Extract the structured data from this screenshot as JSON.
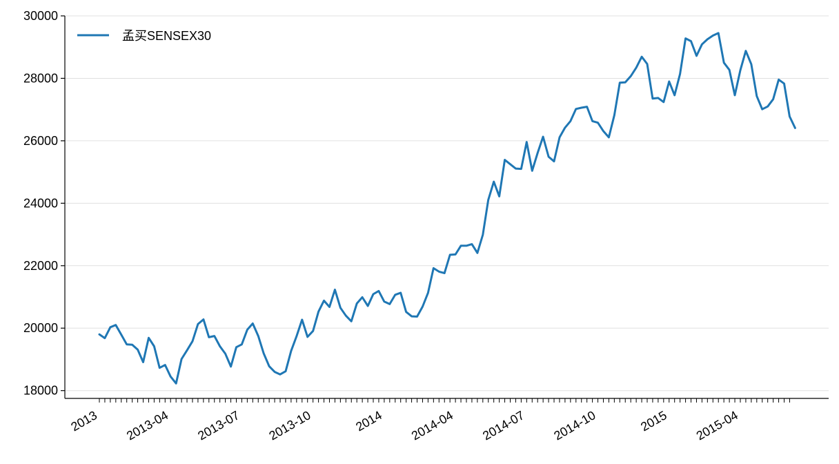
{
  "chart_data": {
    "type": "line",
    "title": "",
    "xlabel": "",
    "ylabel": "",
    "ylim": [
      17750,
      30000
    ],
    "y_ticks": [
      18000,
      20000,
      22000,
      24000,
      26000,
      28000,
      30000
    ],
    "y_tick_labels": [
      "18000",
      "20000",
      "22000",
      "24000",
      "26000",
      "28000",
      "30000"
    ],
    "x_tick_labels": [
      "2013",
      "2013-04",
      "2013-07",
      "2013-10",
      "2014",
      "2014-04",
      "2014-07",
      "2014-10",
      "2015",
      "2015-04"
    ],
    "x_tick_label_positions": [
      0,
      13,
      26,
      39,
      52,
      65,
      78,
      91,
      104,
      117
    ],
    "weekly_minor_ticks": 127,
    "grid": "horizontal",
    "legend_position": "top-left",
    "colors": {
      "line": "#1f77b4",
      "grid": "#e0e0e0",
      "axis": "#000000"
    },
    "series": [
      {
        "name": "孟买SENSEX30",
        "values": [
          19800,
          19680,
          20030,
          20100,
          19790,
          19480,
          19470,
          19310,
          18910,
          19690,
          19420,
          18730,
          18820,
          18450,
          18230,
          19010,
          19290,
          19580,
          20130,
          20280,
          19710,
          19750,
          19420,
          19180,
          18770,
          19390,
          19480,
          19950,
          20150,
          19750,
          19190,
          18780,
          18600,
          18520,
          18620,
          19270,
          19740,
          20270,
          19720,
          19910,
          20530,
          20880,
          20680,
          21230,
          20650,
          20400,
          20220,
          20790,
          20990,
          20710,
          21090,
          21190,
          20850,
          20770,
          21070,
          21130,
          20520,
          20380,
          20370,
          20690,
          21130,
          21920,
          21810,
          21760,
          22350,
          22360,
          22640,
          22640,
          22690,
          22410,
          22990,
          24110,
          24690,
          24220,
          25390,
          25250,
          25110,
          25100,
          25960,
          25040,
          25610,
          26130,
          25490,
          25340,
          26110,
          26420,
          26630,
          27020,
          27060,
          27090,
          26630,
          26580,
          26310,
          26110,
          26820,
          27860,
          27870,
          28070,
          28340,
          28690,
          28460,
          27350,
          27370,
          27240,
          27900,
          27460,
          28140,
          29280,
          29190,
          28720,
          29090,
          29250,
          29370,
          29450,
          28500,
          28270,
          27460,
          28260,
          28880,
          28450,
          27430,
          27010,
          27100,
          27330,
          27960,
          27830,
          26780,
          26410
        ]
      }
    ]
  }
}
